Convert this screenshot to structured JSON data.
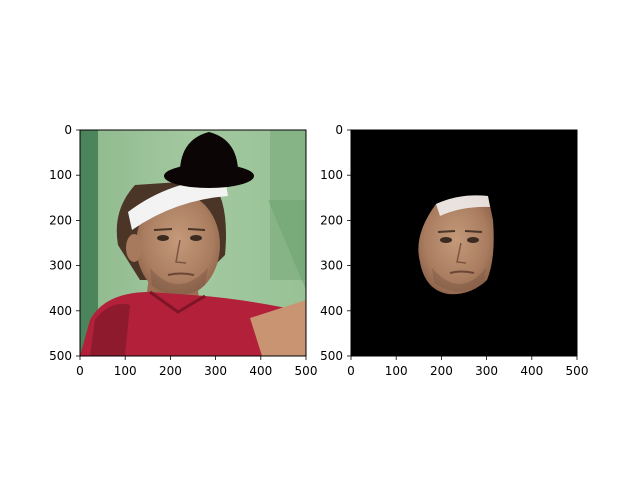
{
  "panels": [
    {
      "name": "composited-image",
      "content": "photo of a man wearing a white headband with a black bowler hat overlaid on top of his head",
      "x_ticks": [
        "0",
        "100",
        "200",
        "300",
        "400",
        "500"
      ],
      "y_ticks": [
        "0",
        "100",
        "200",
        "300",
        "400",
        "500"
      ],
      "xlim": [
        0,
        500
      ],
      "ylim": [
        0,
        500
      ]
    },
    {
      "name": "face-cutout",
      "content": "extracted face region on a black background",
      "x_ticks": [
        "0",
        "100",
        "200",
        "300",
        "400",
        "500"
      ],
      "y_ticks": [
        "0",
        "100",
        "200",
        "300",
        "400",
        "500"
      ],
      "xlim": [
        0,
        500
      ],
      "ylim": [
        0,
        500
      ]
    }
  ],
  "colors": {
    "frame": "#000000",
    "photo_background": "#9cc39a",
    "mask_background": "#000000",
    "hat": "#0b0505",
    "skin": "#b08466",
    "shirt": "#b2203a",
    "headband": "#f3f3f3",
    "hair": "#4a3526"
  }
}
